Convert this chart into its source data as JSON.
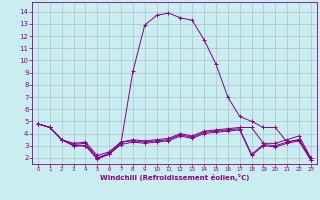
{
  "xlabel": "Windchill (Refroidissement éolien,°C)",
  "bg_color": "#c8eef0",
  "grid_color": "#b0b0cc",
  "line_color": "#880088",
  "x_ticks": [
    0,
    1,
    2,
    3,
    4,
    5,
    6,
    7,
    8,
    9,
    10,
    11,
    12,
    13,
    14,
    15,
    16,
    17,
    18,
    19,
    20,
    21,
    22,
    23
  ],
  "y_ticks": [
    2,
    3,
    4,
    5,
    6,
    7,
    8,
    9,
    10,
    11,
    12,
    13,
    14
  ],
  "ylim": [
    1.5,
    14.8
  ],
  "xlim": [
    -0.5,
    23.5
  ],
  "line1_y": [
    4.8,
    4.5,
    3.5,
    3.2,
    3.3,
    2.2,
    2.5,
    3.3,
    3.5,
    3.4,
    3.5,
    3.6,
    4.0,
    3.8,
    4.2,
    4.3,
    4.4,
    4.5,
    4.5,
    3.2,
    3.2,
    3.5,
    3.8,
    2.0
  ],
  "line2_y": [
    4.8,
    4.5,
    3.5,
    3.1,
    3.2,
    2.0,
    2.3,
    3.2,
    9.1,
    12.9,
    13.7,
    13.9,
    13.5,
    13.3,
    11.7,
    9.7,
    7.0,
    5.4,
    5.0,
    4.5,
    4.5,
    3.3,
    3.5,
    2.0
  ],
  "line3_y": [
    4.8,
    4.5,
    3.5,
    3.0,
    3.0,
    2.0,
    2.4,
    3.3,
    3.4,
    3.3,
    3.4,
    3.5,
    3.9,
    3.7,
    4.1,
    4.2,
    4.3,
    4.4,
    2.3,
    3.1,
    3.0,
    3.3,
    3.5,
    1.8
  ],
  "line4_y": [
    4.8,
    4.5,
    3.5,
    3.0,
    3.0,
    1.9,
    2.3,
    3.1,
    3.3,
    3.2,
    3.3,
    3.4,
    3.8,
    3.6,
    4.0,
    4.1,
    4.2,
    4.3,
    2.2,
    3.0,
    2.9,
    3.2,
    3.4,
    1.8
  ]
}
